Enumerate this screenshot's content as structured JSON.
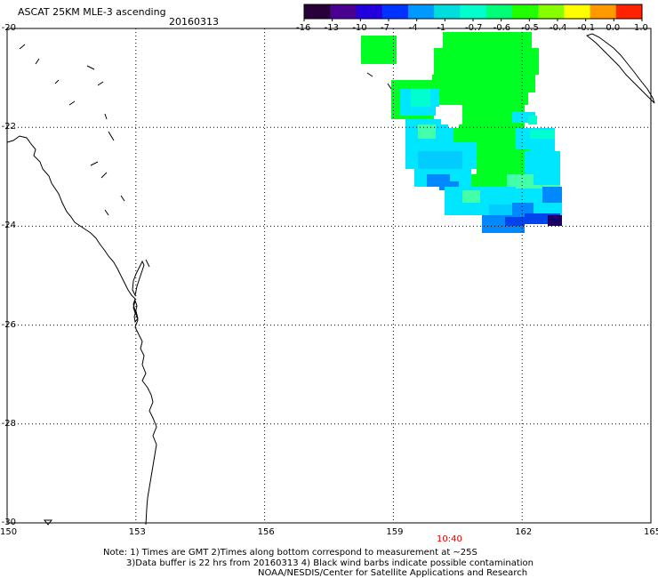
{
  "header": {
    "title": "ASCAT 25KM MLE-3 ascending",
    "date": "20160313"
  },
  "colorbar": {
    "tick_labels": [
      "-16",
      "-13",
      "-10",
      "-7",
      "-4",
      "-1",
      "-0.7",
      "-0.6",
      "-0.5",
      "-0.4",
      "-0.1",
      "0.0",
      "1.0"
    ],
    "colors": [
      "#2a003a",
      "#4a0090",
      "#2200dd",
      "#0033ff",
      "#0099ff",
      "#00dddd",
      "#00ffcc",
      "#00ff77",
      "#22ff00",
      "#88ff00",
      "#ffff00",
      "#ff9900",
      "#ff2200"
    ]
  },
  "map": {
    "lon_labels": [
      "150",
      "153",
      "156",
      "159",
      "162",
      "165"
    ],
    "lat_labels": [
      "-20",
      "-22",
      "-24",
      "-26",
      "-28",
      "-30"
    ],
    "lon_range": [
      150,
      165
    ],
    "lat_range": [
      -20,
      -30
    ],
    "grid": "dotted",
    "pass_time": "10:40"
  },
  "notes": {
    "line1": "Note: 1) Times are GMT 2)Times along bottom correspond to measurement at ~25S",
    "line2": "3)Data buffer is 22 hrs from 20160313 4) Black wind barbs indicate possible contamination",
    "line3": "NOAA/NESDIS/Center for Satellite Applications and Research"
  }
}
